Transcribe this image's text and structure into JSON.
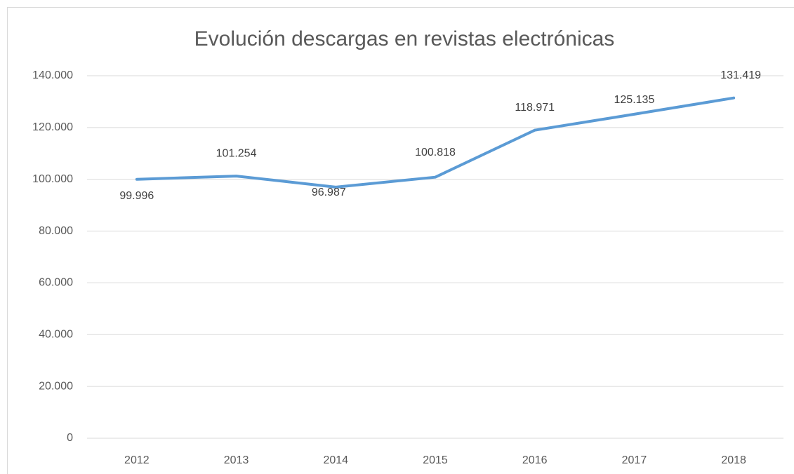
{
  "chart_data": {
    "type": "line",
    "title": "Evolución descargas en revistas electrónicas",
    "categories": [
      "2012",
      "2013",
      "2014",
      "2015",
      "2016",
      "2017",
      "2018"
    ],
    "series": [
      {
        "color": "#5b9bd5",
        "values": [
          99996,
          101254,
          96987,
          100818,
          118971,
          125135,
          131419
        ],
        "value_labels": [
          "99.996",
          "101.254",
          "96.987",
          "100.818",
          "118.971",
          "125.135",
          "131.419"
        ]
      }
    ],
    "ylim": [
      0,
      140000
    ],
    "yticks": [
      0,
      {
        "value": 20000,
        "label": "20.000"
      },
      {
        "value": 40000,
        "label": "40.000"
      },
      {
        "value": 60000,
        "label": "60.000"
      },
      {
        "value": 80000,
        "label": "80.000"
      },
      {
        "value": 100000,
        "label": "100.000"
      },
      {
        "value": 120000,
        "label": "120.000"
      },
      {
        "value": 140000,
        "label": "140.000"
      }
    ],
    "grid": true
  }
}
